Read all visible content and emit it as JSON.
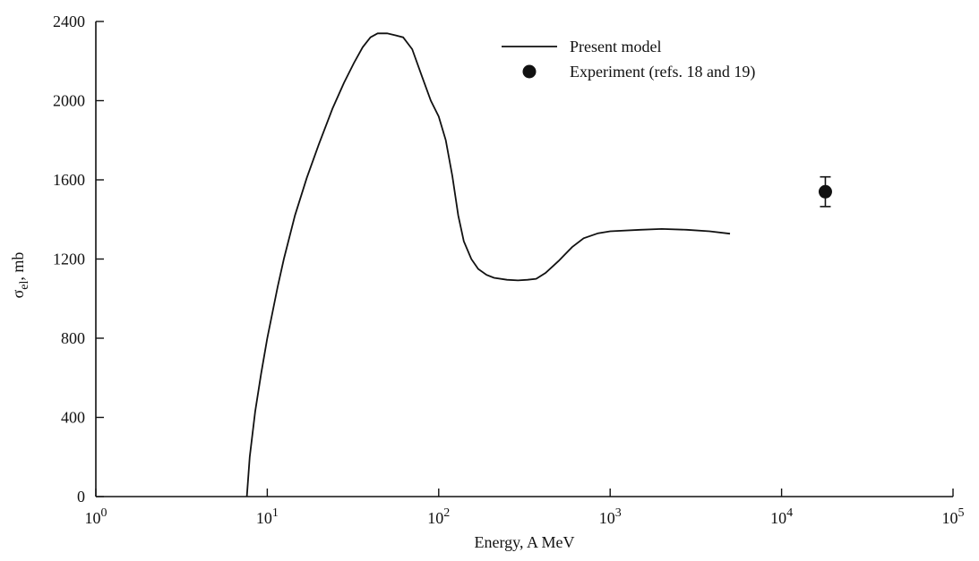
{
  "chart_data": {
    "type": "line",
    "xlabel": "Energy, A MeV",
    "ylabel": {
      "sym": "σ",
      "sub": "el",
      "rest": ", mb"
    },
    "x_scale": "log",
    "xlim": [
      1,
      100000
    ],
    "ylim": [
      0,
      2400
    ],
    "x_ticks": [
      {
        "base": "10",
        "exp": "0",
        "value": 1
      },
      {
        "base": "10",
        "exp": "1",
        "value": 10
      },
      {
        "base": "10",
        "exp": "2",
        "value": 100
      },
      {
        "base": "10",
        "exp": "3",
        "value": 1000
      },
      {
        "base": "10",
        "exp": "4",
        "value": 10000
      },
      {
        "base": "10",
        "exp": "5",
        "value": 100000
      }
    ],
    "y_ticks": [
      "0",
      "400",
      "800",
      "1200",
      "1600",
      "2000",
      "2400"
    ],
    "grid": false,
    "legend": {
      "placement": "top-right",
      "entries": [
        {
          "label": "Present model",
          "marker": "line"
        },
        {
          "label": "Experiment (refs. 18 and 19)",
          "marker": "dot"
        }
      ]
    },
    "series": [
      {
        "label": "Present model",
        "style": "line",
        "points": [
          [
            7.6,
            0
          ],
          [
            7.9,
            200
          ],
          [
            8.5,
            430
          ],
          [
            9.2,
            620
          ],
          [
            10,
            800
          ],
          [
            11.5,
            1060
          ],
          [
            12.5,
            1200
          ],
          [
            14.5,
            1420
          ],
          [
            17,
            1610
          ],
          [
            20,
            1780
          ],
          [
            24,
            1960
          ],
          [
            28,
            2090
          ],
          [
            32,
            2190
          ],
          [
            36,
            2270
          ],
          [
            40,
            2320
          ],
          [
            44,
            2340
          ],
          [
            50,
            2340
          ],
          [
            56,
            2330
          ],
          [
            62,
            2320
          ],
          [
            70,
            2260
          ],
          [
            80,
            2120
          ],
          [
            90,
            2000
          ],
          [
            100,
            1920
          ],
          [
            110,
            1800
          ],
          [
            120,
            1620
          ],
          [
            130,
            1420
          ],
          [
            140,
            1290
          ],
          [
            155,
            1200
          ],
          [
            170,
            1150
          ],
          [
            190,
            1120
          ],
          [
            210,
            1105
          ],
          [
            250,
            1095
          ],
          [
            290,
            1092
          ],
          [
            330,
            1095
          ],
          [
            370,
            1100
          ],
          [
            420,
            1130
          ],
          [
            500,
            1190
          ],
          [
            600,
            1260
          ],
          [
            700,
            1305
          ],
          [
            850,
            1330
          ],
          [
            1000,
            1340
          ],
          [
            1500,
            1348
          ],
          [
            2000,
            1352
          ],
          [
            2800,
            1348
          ],
          [
            3800,
            1340
          ],
          [
            5000,
            1328
          ]
        ]
      },
      {
        "label": "Experiment (refs. 18 and 19)",
        "style": "point",
        "points": [
          {
            "x": 18000,
            "y": 1540,
            "err_low": 1465,
            "err_high": 1615
          }
        ]
      }
    ]
  }
}
